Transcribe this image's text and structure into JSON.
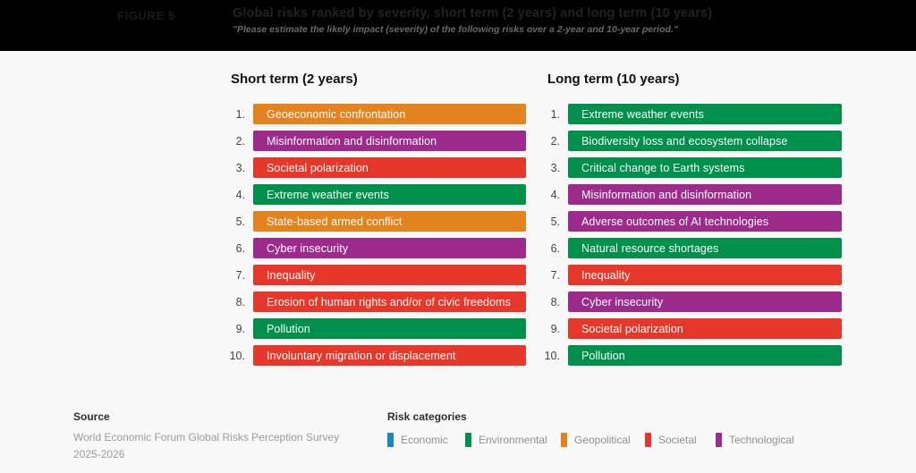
{
  "figure_label": "FIGURE 5",
  "colors": {
    "economic": "#1B85C6",
    "environmental": "#00904C",
    "geopolitical": "#E2831F",
    "societal": "#E6372B",
    "technological": "#9C2B8C"
  },
  "chart_data": {
    "type": "table",
    "title": "Global risks ranked by severity, short term (2 years) and long term (10 years)",
    "subtitle": "\"Please estimate the likely impact (severity) of the following risks over a 2-year and 10-year period.\"",
    "panels": [
      {
        "label": "Short term (2 years)",
        "ranking": [
          {
            "rank": "1.",
            "risk": "Geoeconomic confrontation",
            "category": "geopolitical"
          },
          {
            "rank": "2.",
            "risk": "Misinformation and disinformation",
            "category": "technological"
          },
          {
            "rank": "3.",
            "risk": "Societal polarization",
            "category": "societal"
          },
          {
            "rank": "4.",
            "risk": "Extreme weather events",
            "category": "environmental"
          },
          {
            "rank": "5.",
            "risk": "State-based armed conflict",
            "category": "geopolitical"
          },
          {
            "rank": "6.",
            "risk": "Cyber insecurity",
            "category": "technological"
          },
          {
            "rank": "7.",
            "risk": "Inequality",
            "category": "societal"
          },
          {
            "rank": "8.",
            "risk": "Erosion of human rights and/or of civic freedoms",
            "category": "societal"
          },
          {
            "rank": "9.",
            "risk": "Pollution",
            "category": "environmental"
          },
          {
            "rank": "10.",
            "risk": "Involuntary migration or displacement",
            "category": "societal"
          }
        ]
      },
      {
        "label": "Long term (10 years)",
        "ranking": [
          {
            "rank": "1.",
            "risk": "Extreme weather events",
            "category": "environmental"
          },
          {
            "rank": "2.",
            "risk": "Biodiversity loss and ecosystem collapse",
            "category": "environmental"
          },
          {
            "rank": "3.",
            "risk": "Critical change to Earth systems",
            "category": "environmental"
          },
          {
            "rank": "4.",
            "risk": "Misinformation and disinformation",
            "category": "technological"
          },
          {
            "rank": "5.",
            "risk": "Adverse outcomes of AI technologies",
            "category": "technological"
          },
          {
            "rank": "6.",
            "risk": "Natural resource shortages",
            "category": "environmental"
          },
          {
            "rank": "7.",
            "risk": "Inequality",
            "category": "societal"
          },
          {
            "rank": "8.",
            "risk": "Cyber insecurity",
            "category": "technological"
          },
          {
            "rank": "9.",
            "risk": "Societal polarization",
            "category": "societal"
          },
          {
            "rank": "10.",
            "risk": "Pollution",
            "category": "environmental"
          }
        ]
      }
    ],
    "legend": {
      "title": "Risk categories",
      "entries": [
        {
          "label": "Economic",
          "category": "economic"
        },
        {
          "label": "Environmental",
          "category": "environmental"
        },
        {
          "label": "Geopolitical",
          "category": "geopolitical"
        },
        {
          "label": "Societal",
          "category": "societal"
        },
        {
          "label": "Technological",
          "category": "technological"
        }
      ]
    }
  },
  "footer": {
    "source_label": "Source",
    "source_line1": "World Economic Forum Global Risks Perception Survey",
    "source_line2": "2025-2026"
  }
}
